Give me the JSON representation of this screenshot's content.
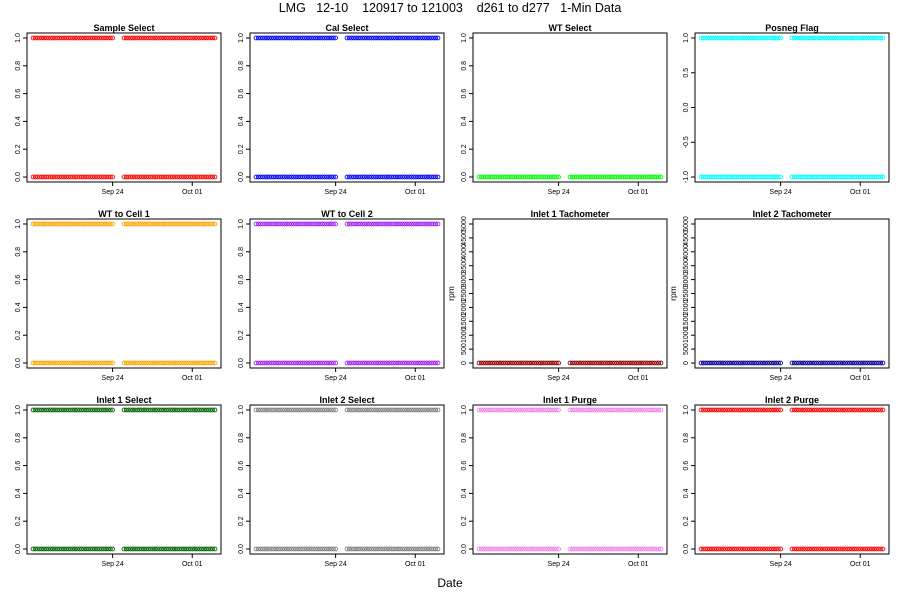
{
  "page": {
    "title": "LMG   12-10    120917 to 121003    d261 to d277   1-Min Data",
    "xlabel": "Date"
  },
  "chart_data": [
    {
      "type": "scatter",
      "title": "Sample Select",
      "ylabel": "",
      "color": "#ff0000",
      "ylim": [
        0,
        1
      ],
      "yticks": [
        0,
        0.2,
        0.4,
        0.6,
        0.8,
        1.0
      ],
      "yticklabels": [
        "0.0",
        "0.2",
        "0.4",
        "0.6",
        "0.8",
        "1.0"
      ],
      "xticks": [
        "Sep 24",
        "Oct 01"
      ],
      "x_range": [
        "2012-09-17",
        "2012-10-03"
      ],
      "levels": [
        0,
        1
      ],
      "segments": [
        [
          "2012-09-17",
          "2012-09-24"
        ],
        [
          "2012-09-25",
          "2012-10-03"
        ]
      ]
    },
    {
      "type": "scatter",
      "title": "Cal Select",
      "ylabel": "",
      "color": "#0000ff",
      "ylim": [
        0,
        1
      ],
      "yticks": [
        0,
        0.2,
        0.4,
        0.6,
        0.8,
        1.0
      ],
      "yticklabels": [
        "0.0",
        "0.2",
        "0.4",
        "0.6",
        "0.8",
        "1.0"
      ],
      "xticks": [
        "Sep 24",
        "Oct 01"
      ],
      "x_range": [
        "2012-09-17",
        "2012-10-03"
      ],
      "levels": [
        0,
        1
      ],
      "segments": [
        [
          "2012-09-17",
          "2012-09-24"
        ],
        [
          "2012-09-25",
          "2012-10-03"
        ]
      ]
    },
    {
      "type": "scatter",
      "title": "WT Select",
      "ylabel": "",
      "color": "#00ff00",
      "ylim": [
        0,
        1
      ],
      "yticks": [
        0,
        0.2,
        0.4,
        0.6,
        0.8,
        1.0
      ],
      "yticklabels": [
        "0.0",
        "0.2",
        "0.4",
        "0.6",
        "0.8",
        "1.0"
      ],
      "xticks": [
        "Sep 24",
        "Oct 01"
      ],
      "x_range": [
        "2012-09-17",
        "2012-10-03"
      ],
      "levels": [
        0
      ],
      "segments": [
        [
          "2012-09-17",
          "2012-09-24"
        ],
        [
          "2012-09-25",
          "2012-10-03"
        ]
      ]
    },
    {
      "type": "scatter",
      "title": "Posneg Flag",
      "ylabel": "",
      "color": "#00ffff",
      "ylim": [
        -1,
        1
      ],
      "yticks": [
        -1,
        -0.5,
        0,
        0.5,
        1
      ],
      "yticklabels": [
        "-1.0",
        "-0.5",
        "0.0",
        "0.5",
        "1.0"
      ],
      "xticks": [
        "Sep 24",
        "Oct 01"
      ],
      "x_range": [
        "2012-09-17",
        "2012-10-03"
      ],
      "levels": [
        -1,
        1
      ],
      "segments": [
        [
          "2012-09-17",
          "2012-09-24"
        ],
        [
          "2012-09-25",
          "2012-10-03"
        ]
      ]
    },
    {
      "type": "scatter",
      "title": "WT to Cell 1",
      "ylabel": "",
      "color": "#ffa500",
      "ylim": [
        0,
        1
      ],
      "yticks": [
        0,
        0.2,
        0.4,
        0.6,
        0.8,
        1.0
      ],
      "yticklabels": [
        "0.0",
        "0.2",
        "0.4",
        "0.6",
        "0.8",
        "1.0"
      ],
      "xticks": [
        "Sep 24",
        "Oct 01"
      ],
      "x_range": [
        "2012-09-17",
        "2012-10-03"
      ],
      "levels": [
        0,
        1
      ],
      "segments": [
        [
          "2012-09-17",
          "2012-09-24"
        ],
        [
          "2012-09-25",
          "2012-10-03"
        ]
      ]
    },
    {
      "type": "scatter",
      "title": "WT to Cell 2",
      "ylabel": "",
      "color": "#a020f0",
      "ylim": [
        0,
        1
      ],
      "yticks": [
        0,
        0.2,
        0.4,
        0.6,
        0.8,
        1.0
      ],
      "yticklabels": [
        "0.0",
        "0.2",
        "0.4",
        "0.6",
        "0.8",
        "1.0"
      ],
      "xticks": [
        "Sep 24",
        "Oct 01"
      ],
      "x_range": [
        "2012-09-17",
        "2012-10-03"
      ],
      "levels": [
        0,
        1
      ],
      "segments": [
        [
          "2012-09-17",
          "2012-09-24"
        ],
        [
          "2012-09-25",
          "2012-10-03"
        ]
      ]
    },
    {
      "type": "scatter",
      "title": "Inlet 1 Tachometer",
      "ylabel": "rpm",
      "color": "#8b0000",
      "ylim": [
        0,
        5000
      ],
      "yticks": [
        0,
        500,
        1000,
        1500,
        2000,
        2500,
        3000,
        3500,
        4000,
        4500,
        5000
      ],
      "yticklabels": [
        "0",
        "500",
        "1000",
        "1500",
        "2000",
        "2500",
        "3000",
        "3500",
        "4000",
        "4500",
        "5000"
      ],
      "xticks": [
        "Sep 24",
        "Oct 01"
      ],
      "x_range": [
        "2012-09-17",
        "2012-10-03"
      ],
      "levels": [
        0
      ],
      "segments": [
        [
          "2012-09-17",
          "2012-09-24"
        ],
        [
          "2012-09-25",
          "2012-10-03"
        ]
      ]
    },
    {
      "type": "scatter",
      "title": "Inlet 2 Tachometer",
      "ylabel": "rpm",
      "color": "#00008b",
      "ylim": [
        0,
        5000
      ],
      "yticks": [
        0,
        500,
        1000,
        1500,
        2000,
        2500,
        3000,
        3500,
        4000,
        4500,
        5000
      ],
      "yticklabels": [
        "0",
        "500",
        "1000",
        "1500",
        "2000",
        "2500",
        "3000",
        "3500",
        "4000",
        "4500",
        "5000"
      ],
      "xticks": [
        "Sep 24",
        "Oct 01"
      ],
      "x_range": [
        "2012-09-17",
        "2012-10-03"
      ],
      "levels": [
        0
      ],
      "segments": [
        [
          "2012-09-17",
          "2012-09-24"
        ],
        [
          "2012-09-25",
          "2012-10-03"
        ]
      ]
    },
    {
      "type": "scatter",
      "title": "Inlet 1 Select",
      "ylabel": "",
      "color": "#006400",
      "ylim": [
        0,
        1
      ],
      "yticks": [
        0,
        0.2,
        0.4,
        0.6,
        0.8,
        1.0
      ],
      "yticklabels": [
        "0.0",
        "0.2",
        "0.4",
        "0.6",
        "0.8",
        "1.0"
      ],
      "xticks": [
        "Sep 24",
        "Oct 01"
      ],
      "x_range": [
        "2012-09-17",
        "2012-10-03"
      ],
      "levels": [
        0,
        1
      ],
      "segments": [
        [
          "2012-09-17",
          "2012-09-24"
        ],
        [
          "2012-09-25",
          "2012-10-03"
        ]
      ]
    },
    {
      "type": "scatter",
      "title": "Inlet 2 Select",
      "ylabel": "",
      "color": "#808080",
      "ylim": [
        0,
        1
      ],
      "yticks": [
        0,
        0.2,
        0.4,
        0.6,
        0.8,
        1.0
      ],
      "yticklabels": [
        "0.0",
        "0.2",
        "0.4",
        "0.6",
        "0.8",
        "1.0"
      ],
      "xticks": [
        "Sep 24",
        "Oct 01"
      ],
      "x_range": [
        "2012-09-17",
        "2012-10-03"
      ],
      "levels": [
        0,
        1
      ],
      "segments": [
        [
          "2012-09-17",
          "2012-09-24"
        ],
        [
          "2012-09-25",
          "2012-10-03"
        ]
      ]
    },
    {
      "type": "scatter",
      "title": "Inlet 1 Purge",
      "ylabel": "",
      "color": "#ee82ee",
      "ylim": [
        0,
        1
      ],
      "yticks": [
        0,
        0.2,
        0.4,
        0.6,
        0.8,
        1.0
      ],
      "yticklabels": [
        "0.0",
        "0.2",
        "0.4",
        "0.6",
        "0.8",
        "1.0"
      ],
      "xticks": [
        "Sep 24",
        "Oct 01"
      ],
      "x_range": [
        "2012-09-17",
        "2012-10-03"
      ],
      "levels": [
        0,
        1
      ],
      "segments": [
        [
          "2012-09-17",
          "2012-09-24"
        ],
        [
          "2012-09-25",
          "2012-10-03"
        ]
      ]
    },
    {
      "type": "scatter",
      "title": "Inlet 2 Purge",
      "ylabel": "",
      "color": "#ff0000",
      "ylim": [
        0,
        1
      ],
      "yticks": [
        0,
        0.2,
        0.4,
        0.6,
        0.8,
        1.0
      ],
      "yticklabels": [
        "0.0",
        "0.2",
        "0.4",
        "0.6",
        "0.8",
        "1.0"
      ],
      "xticks": [
        "Sep 24",
        "Oct 01"
      ],
      "x_range": [
        "2012-09-17",
        "2012-10-03"
      ],
      "levels": [
        0,
        1
      ],
      "segments": [
        [
          "2012-09-17",
          "2012-09-24"
        ],
        [
          "2012-09-25",
          "2012-10-03"
        ]
      ]
    }
  ]
}
